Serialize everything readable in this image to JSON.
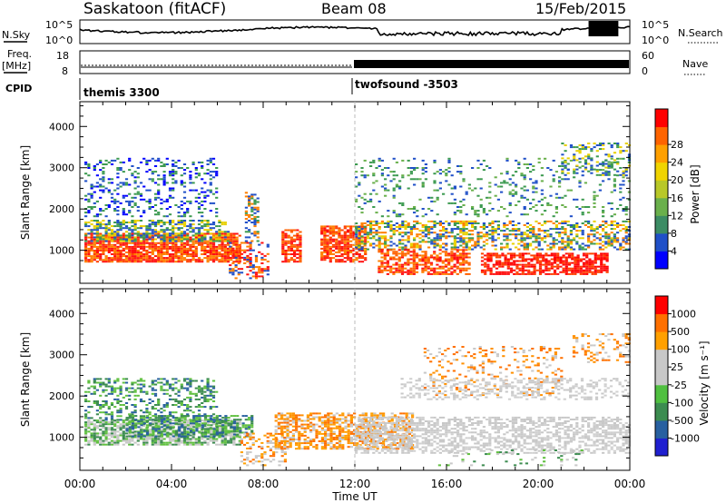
{
  "header": {
    "title": "Saskatoon (fitACF)",
    "beam": "Beam 08",
    "date": "15/Feb/2015"
  },
  "top_panels": {
    "nsky_label": "N.Sky",
    "nsearch_label": "N.Search",
    "freq_label_line1": "Freq.",
    "freq_label_line2": "[MHz]",
    "nave_label": "Nave",
    "cpid_label": "CPID",
    "noise_ticks_left": [
      "10^5",
      "10^0"
    ],
    "noise_ticks_right": [
      "10^5",
      "10^0"
    ],
    "freq_ticks_left": [
      "18",
      "8"
    ],
    "nave_ticks_right": [
      "60",
      "0"
    ],
    "cpid_segments": [
      {
        "label": "themis 3300",
        "start_hour": 0
      },
      {
        "label": "twofsound -3503",
        "start_hour": 12
      }
    ]
  },
  "chart_data": [
    {
      "type": "heatmap",
      "name": "power-panel",
      "ylabel": "Slant Range [km]",
      "xlabel": "Time UT",
      "xlim_hours": [
        0,
        24
      ],
      "ylim": [
        200,
        4600
      ],
      "y_ticks": [
        1000,
        2000,
        3000,
        4000
      ],
      "colorbar": {
        "label": "Power [dB]",
        "ticks": [
          "4",
          "8",
          "12",
          "16",
          "20",
          "24",
          "28"
        ],
        "colors": [
          "#0000ff",
          "#2050c8",
          "#3c8c64",
          "#6ab04c",
          "#b8c828",
          "#f0d400",
          "#ffa000",
          "#ff6400",
          "#ff0000"
        ]
      }
    },
    {
      "type": "heatmap",
      "name": "velocity-panel",
      "ylabel": "Slant Range [km]",
      "xlabel": "Time UT",
      "xlim_hours": [
        0,
        24
      ],
      "ylim": [
        200,
        4600
      ],
      "y_ticks": [
        1000,
        2000,
        3000,
        4000
      ],
      "colorbar": {
        "label": "Velocity [m s⁻¹]",
        "ticks": [
          "1000",
          "500",
          "100",
          "25",
          "-25",
          "-100",
          "-500",
          "-1000"
        ],
        "colors": [
          "#2020d0",
          "#2860a0",
          "#3c8c50",
          "#50c040",
          "#c8c8c8",
          "#c8c8c8",
          "#ffa000",
          "#ff7000",
          "#ff0000"
        ]
      }
    }
  ],
  "x_ticks": [
    "00:00",
    "04:00",
    "08:00",
    "12:00",
    "16:00",
    "20:00",
    "00:00"
  ],
  "x_axis_label": "Time UT",
  "colors": {
    "power_red": "#ff1010",
    "power_orange": "#ff8000",
    "power_yellow": "#e8d000",
    "power_green": "#3c9a50",
    "power_blue": "#2040c0",
    "vel_gray": "#c8c8c8",
    "vel_green": "#3c8c50",
    "vel_lime": "#60c040",
    "vel_orange": "#ff9000",
    "vel_red": "#ff2000"
  }
}
